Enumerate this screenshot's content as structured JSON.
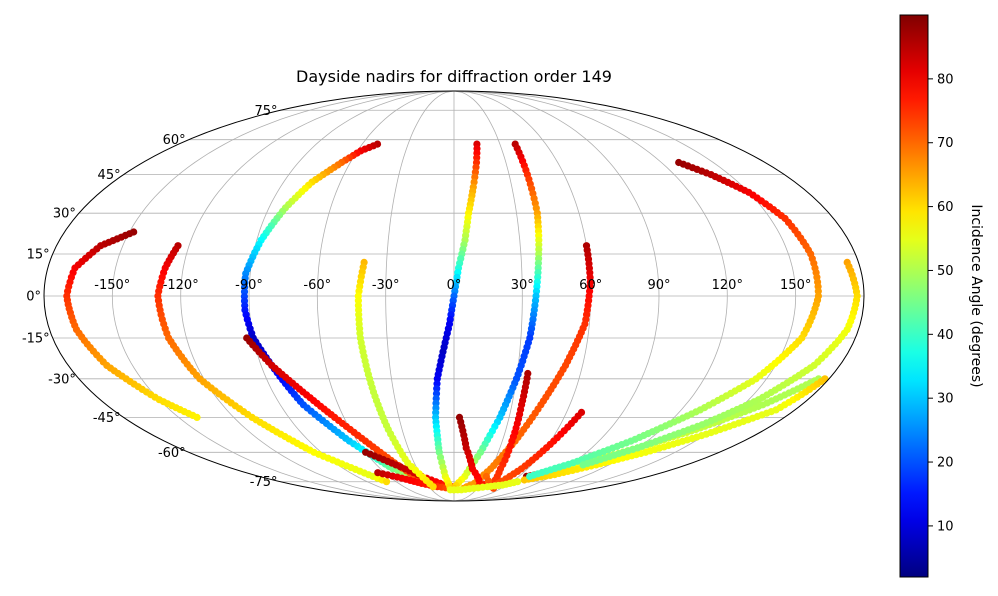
{
  "chart_data": {
    "type": "scatter",
    "projection": "mollweide",
    "title": "Dayside nadirs for diffraction order 149",
    "xticks": [
      -150,
      -120,
      -90,
      -60,
      -30,
      0,
      30,
      60,
      90,
      120,
      150
    ],
    "xtick_labels": [
      "-150°",
      "-120°",
      "-90°",
      "-60°",
      "-30°",
      "0°",
      "30°",
      "60°",
      "90°",
      "120°",
      "150°"
    ],
    "yticks": [
      -75,
      -60,
      -45,
      -30,
      -15,
      0,
      15,
      30,
      45,
      60,
      75
    ],
    "ytick_labels": [
      "-75°",
      "-60°",
      "-45°",
      "-30°",
      "-15°",
      "0°",
      "15°",
      "30°",
      "45°",
      "60°",
      "75°"
    ],
    "grid": true,
    "colormap": "jet",
    "colorbar": {
      "label": "Incidence Angle (degrees)",
      "range": [
        2,
        90
      ],
      "ticks": [
        10,
        20,
        30,
        40,
        50,
        60,
        70,
        80
      ],
      "tick_labels": [
        "10",
        "20",
        "30",
        "40",
        "50",
        "60",
        "70",
        "80"
      ]
    },
    "tracks": [
      {
        "points": [
          [
            -148,
            23,
            88
          ],
          [
            -160,
            18,
            85
          ],
          [
            -168,
            10,
            80
          ],
          [
            -170,
            0,
            75
          ],
          [
            -168,
            -12,
            70
          ],
          [
            -162,
            -25,
            65
          ],
          [
            -150,
            -38,
            60
          ],
          [
            -140,
            -45,
            58
          ]
        ]
      },
      {
        "points": [
          [
            -125,
            18,
            85
          ],
          [
            -128,
            10,
            80
          ],
          [
            -130,
            0,
            75
          ],
          [
            -128,
            -15,
            70
          ],
          [
            -122,
            -30,
            65
          ],
          [
            -110,
            -45,
            60
          ],
          [
            -95,
            -60,
            57
          ],
          [
            -75,
            -72,
            55
          ],
          [
            -70,
            -75,
            60
          ]
        ]
      },
      {
        "points": [
          [
            -50,
            58,
            85
          ],
          [
            -58,
            55,
            80
          ],
          [
            -65,
            50,
            70
          ],
          [
            -75,
            42,
            60
          ],
          [
            -82,
            32,
            50
          ],
          [
            -88,
            20,
            35
          ],
          [
            -92,
            8,
            25
          ],
          [
            -92,
            -5,
            15
          ],
          [
            -90,
            -15,
            8
          ],
          [
            -85,
            -25,
            10
          ],
          [
            -78,
            -40,
            20
          ],
          [
            -65,
            -55,
            30
          ],
          [
            -50,
            -68,
            45
          ],
          [
            -30,
            -75,
            55
          ],
          [
            -10,
            -78,
            62
          ]
        ]
      },
      {
        "points": [
          [
            -93,
            -15,
            88
          ],
          [
            -85,
            -25,
            83
          ],
          [
            -75,
            -35,
            80
          ],
          [
            -65,
            -45,
            77
          ],
          [
            -55,
            -55,
            75
          ],
          [
            -45,
            -65,
            72
          ],
          [
            -35,
            -73,
            72
          ],
          [
            -25,
            -78,
            70
          ]
        ]
      },
      {
        "points": [
          [
            -60,
            -60,
            88
          ],
          [
            -45,
            -66,
            85
          ],
          [
            -30,
            -72,
            82
          ],
          [
            -15,
            -76,
            78
          ],
          [
            0,
            -78,
            75
          ]
        ]
      },
      {
        "points": [
          [
            -66,
            -70,
            85
          ],
          [
            -50,
            -73,
            80
          ],
          [
            -35,
            -76,
            78
          ],
          [
            -20,
            -78,
            75
          ],
          [
            -5,
            -79,
            72
          ]
        ]
      },
      {
        "points": [
          [
            -40,
            12,
            63
          ],
          [
            -42,
            0,
            57
          ],
          [
            -42,
            -15,
            53
          ],
          [
            -40,
            -35,
            52
          ],
          [
            -38,
            -50,
            52
          ],
          [
            -35,
            -65,
            55
          ],
          [
            -25,
            -78,
            60
          ]
        ]
      },
      {
        "points": [
          [
            15,
            58,
            82
          ],
          [
            13,
            50,
            75
          ],
          [
            10,
            40,
            65
          ],
          [
            7,
            30,
            58
          ],
          [
            5,
            20,
            50
          ],
          [
            2,
            10,
            38
          ],
          [
            0,
            0,
            22
          ],
          [
            -2,
            -10,
            12
          ],
          [
            -5,
            -20,
            8
          ],
          [
            -8,
            -30,
            12
          ],
          [
            -10,
            -45,
            30
          ],
          [
            -10,
            -60,
            45
          ],
          [
            -8,
            -72,
            55
          ],
          [
            -5,
            -78,
            60
          ],
          [
            0,
            -80,
            62
          ]
        ]
      },
      {
        "points": [
          [
            40,
            58,
            85
          ],
          [
            40,
            45,
            75
          ],
          [
            40,
            30,
            65
          ],
          [
            38,
            15,
            50
          ],
          [
            36,
            0,
            30
          ],
          [
            34,
            -15,
            18
          ],
          [
            30,
            -30,
            20
          ],
          [
            25,
            -45,
            30
          ],
          [
            18,
            -60,
            45
          ],
          [
            10,
            -72,
            55
          ],
          [
            0,
            -79,
            62
          ]
        ]
      },
      {
        "points": [
          [
            60,
            18,
            86
          ],
          [
            60,
            5,
            80
          ],
          [
            58,
            -10,
            75
          ],
          [
            52,
            -25,
            73
          ],
          [
            45,
            -40,
            72
          ],
          [
            38,
            -55,
            70
          ],
          [
            30,
            -68,
            68
          ],
          [
            22,
            -76,
            66
          ],
          [
            12,
            -79,
            65
          ]
        ]
      },
      {
        "points": [
          [
            3,
            -45,
            88
          ],
          [
            8,
            -58,
            84
          ],
          [
            15,
            -68,
            80
          ],
          [
            28,
            -76,
            78
          ],
          [
            45,
            -78,
            76
          ]
        ]
      },
      {
        "points": [
          [
            35,
            -28,
            86
          ],
          [
            35,
            -40,
            82
          ],
          [
            36,
            -55,
            78
          ],
          [
            38,
            -68,
            75
          ],
          [
            42,
            -76,
            74
          ]
        ]
      },
      {
        "points": [
          [
            30,
            -72,
            70
          ],
          [
            40,
            -77,
            72
          ],
          [
            50,
            -79,
            73
          ]
        ]
      },
      {
        "points": [
          [
            68,
            -43,
            82
          ],
          [
            62,
            -55,
            78
          ],
          [
            55,
            -68,
            74
          ],
          [
            48,
            -76,
            72
          ]
        ]
      },
      {
        "points": [
          [
            67,
            -72,
            88
          ],
          [
            80,
            -70,
            58
          ],
          [
            100,
            -65,
            56
          ],
          [
            120,
            -58,
            54
          ],
          [
            140,
            -50,
            52
          ],
          [
            160,
            -40,
            50
          ],
          [
            175,
            -30,
            50
          ]
        ]
      },
      {
        "points": [
          [
            70,
            -74,
            62
          ],
          [
            90,
            -71,
            60
          ],
          [
            110,
            -66,
            58
          ],
          [
            130,
            -60,
            56
          ],
          [
            150,
            -52,
            55
          ],
          [
            170,
            -42,
            55
          ],
          [
            178,
            -30,
            62
          ]
        ]
      },
      {
        "points": [
          [
            -5,
            -80,
            55
          ],
          [
            10,
            -80,
            55
          ],
          [
            25,
            -79,
            55
          ],
          [
            40,
            -78,
            55
          ],
          [
            55,
            -77,
            55
          ],
          [
            66,
            -75,
            55
          ]
        ]
      },
      {
        "points": [
          [
            130,
            50,
            88
          ],
          [
            140,
            45,
            85
          ],
          [
            150,
            38,
            80
          ],
          [
            157,
            28,
            75
          ],
          [
            160,
            15,
            70
          ],
          [
            160,
            0,
            65
          ],
          [
            156,
            -15,
            60
          ],
          [
            145,
            -30,
            55
          ],
          [
            130,
            -42,
            50
          ],
          [
            110,
            -55,
            45
          ],
          [
            90,
            -65,
            42
          ],
          [
            70,
            -72,
            40
          ]
        ]
      },
      {
        "points": [
          [
            175,
            12,
            65
          ],
          [
            177,
            0,
            60
          ],
          [
            175,
            -12,
            56
          ],
          [
            168,
            -25,
            53
          ],
          [
            155,
            -38,
            50
          ],
          [
            140,
            -48,
            48
          ],
          [
            120,
            -58,
            46
          ],
          [
            100,
            -66,
            45
          ]
        ]
      }
    ]
  }
}
